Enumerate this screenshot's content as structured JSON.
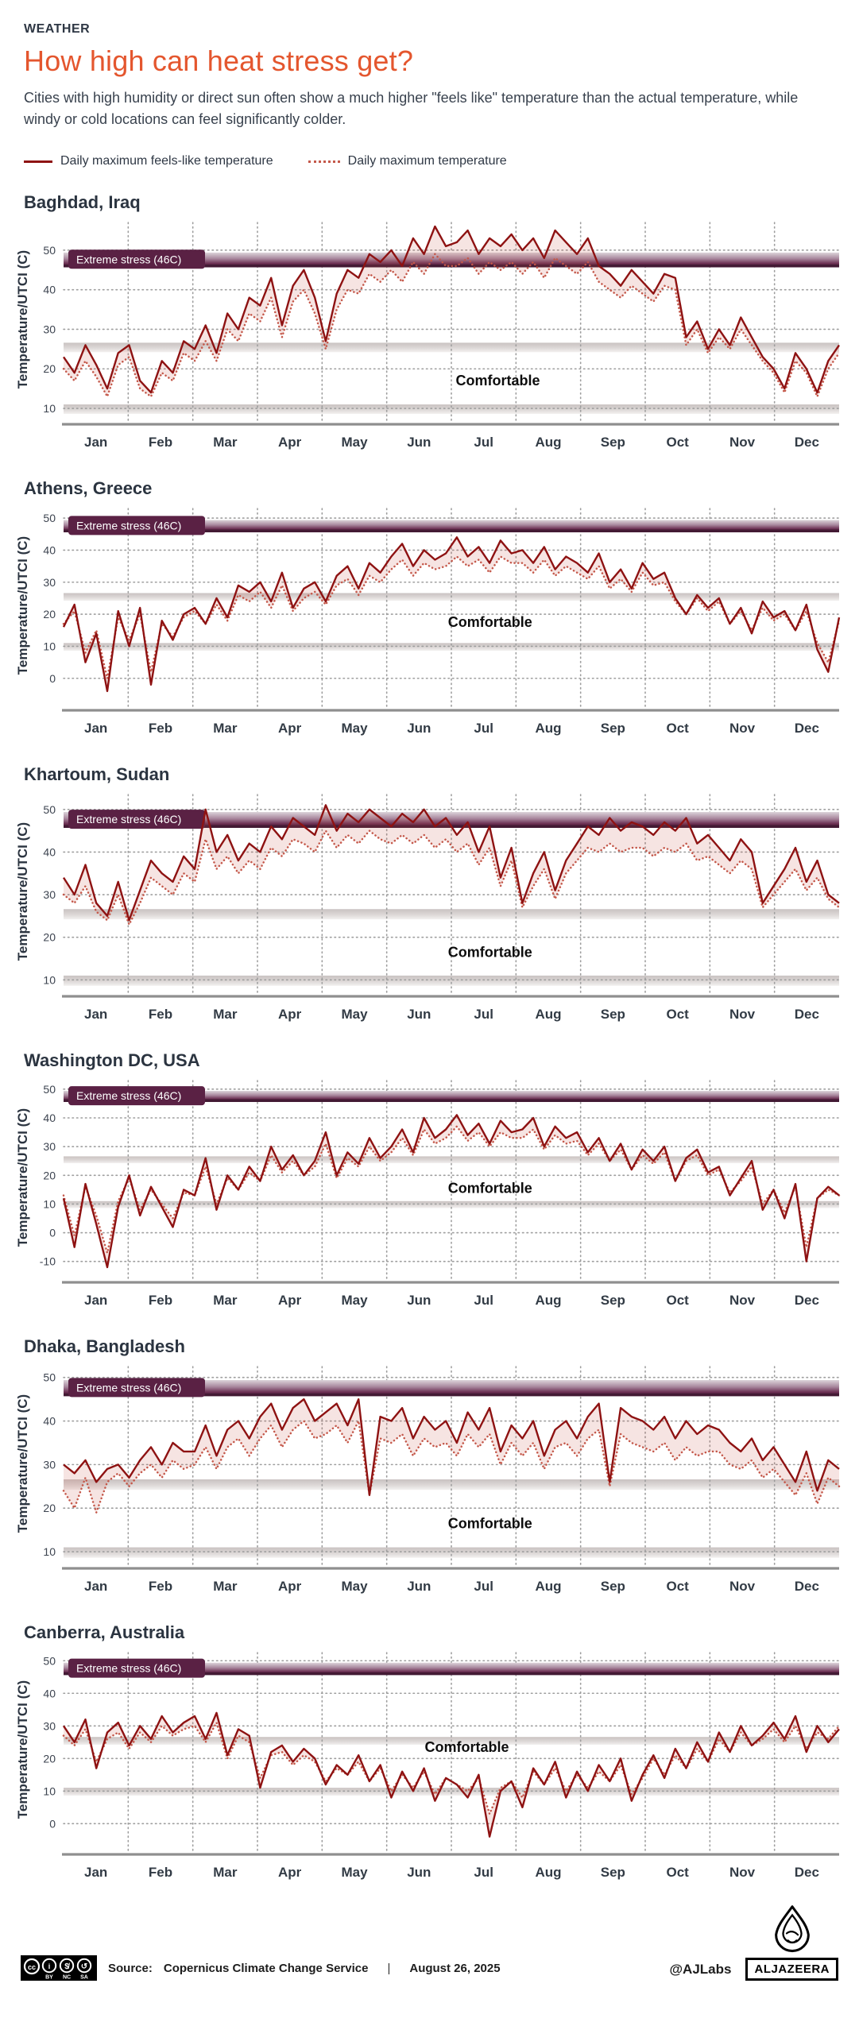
{
  "header": {
    "kicker": "WEATHER",
    "title": "How high can heat stress get?",
    "description": "Cities with high humidity or direct sun often show a much higher \"feels like\" temperature than the actual temperature, while windy or cold locations can feel significantly colder.",
    "legend": [
      {
        "label": "Daily maximum feels-like temperature",
        "style": "solid"
      },
      {
        "label": "Daily maximum temperature",
        "style": "dotted"
      }
    ]
  },
  "colors": {
    "accent": "#e4562e",
    "feels_like_line": "#8e1212",
    "actual_line": "#c4584a",
    "between_fill": "rgba(196,88,74,0.16)",
    "gridline": "#9e9e9e",
    "axis_line": "#8f8f8f",
    "extreme_badge": "#5a2144",
    "extreme_dark_edge": "#431a34",
    "text_dark": "#2b3440"
  },
  "axis": {
    "y_label": "Temperature/UTCI (C)",
    "months": [
      "Jan",
      "Feb",
      "Mar",
      "Apr",
      "May",
      "Jun",
      "Jul",
      "Aug",
      "Sep",
      "Oct",
      "Nov",
      "Dec"
    ]
  },
  "bands": {
    "extreme_label": "Extreme stress (46C)",
    "extreme_range": [
      46,
      49.4
    ],
    "comfortable_label": "Comfortable",
    "comfort_bands": [
      [
        24.2,
        26.6
      ],
      [
        8.6,
        11
      ]
    ]
  },
  "chart_data": [
    {
      "type": "line",
      "title": "Baghdad, Iraq",
      "ylim": [
        8,
        57
      ],
      "yticks": [
        10,
        20,
        30,
        40,
        50
      ],
      "comfort_label_x": 0.56,
      "comfort_label_v": 17,
      "series": [
        {
          "name": "Daily maximum feels-like temperature",
          "values": [
            23,
            19,
            26,
            21,
            15,
            24,
            26,
            17,
            14,
            22,
            19,
            27,
            25,
            31,
            24,
            34,
            30,
            38,
            36,
            43,
            31,
            41,
            45,
            38,
            27,
            39,
            45,
            43,
            49,
            47,
            50,
            46,
            53,
            49,
            56,
            51,
            52,
            55,
            49,
            53,
            51,
            54,
            50,
            53,
            48,
            55,
            52,
            49,
            53,
            46,
            44,
            41,
            45,
            42,
            39,
            44,
            43,
            28,
            32,
            25,
            30,
            26,
            33,
            28,
            23,
            20,
            15,
            24,
            20,
            14,
            22,
            26
          ]
        },
        {
          "name": "Daily maximum temperature",
          "values": [
            20,
            17,
            22,
            18,
            13,
            21,
            23,
            15,
            13,
            19,
            17,
            24,
            22,
            27,
            22,
            30,
            27,
            34,
            32,
            38,
            28,
            37,
            40,
            34,
            25,
            35,
            40,
            39,
            44,
            42,
            45,
            42,
            47,
            44,
            49,
            46,
            46,
            48,
            44,
            47,
            45,
            47,
            44,
            47,
            43,
            48,
            46,
            44,
            47,
            42,
            40,
            38,
            41,
            39,
            37,
            41,
            40,
            26,
            30,
            24,
            28,
            25,
            30,
            26,
            22,
            19,
            14,
            22,
            19,
            13,
            20,
            24
          ]
        }
      ]
    },
    {
      "type": "line",
      "title": "Athens, Greece",
      "ylim": [
        -7.5,
        53
      ],
      "yticks": [
        0,
        10,
        20,
        30,
        40,
        50
      ],
      "comfort_label_x": 0.55,
      "comfort_label_v": 17.5,
      "series": [
        {
          "name": "Daily maximum feels-like temperature",
          "values": [
            16,
            23,
            5,
            14,
            -4,
            21,
            10,
            22,
            -2,
            18,
            12,
            20,
            22,
            17,
            25,
            19,
            29,
            27,
            30,
            24,
            33,
            22,
            28,
            30,
            24,
            32,
            35,
            28,
            36,
            33,
            38,
            42,
            35,
            40,
            37,
            39,
            44,
            38,
            41,
            36,
            43,
            39,
            40,
            36,
            41,
            34,
            38,
            36,
            33,
            39,
            30,
            34,
            28,
            36,
            31,
            33,
            25,
            20,
            26,
            22,
            25,
            17,
            22,
            14,
            24,
            19,
            21,
            15,
            23,
            9,
            2,
            19
          ]
        },
        {
          "name": "Daily maximum temperature",
          "values": [
            17,
            21,
            8,
            15,
            0,
            19,
            12,
            20,
            2,
            17,
            13,
            19,
            21,
            17,
            23,
            18,
            26,
            24,
            27,
            22,
            29,
            21,
            25,
            27,
            23,
            29,
            31,
            26,
            32,
            30,
            34,
            37,
            32,
            36,
            34,
            35,
            38,
            35,
            37,
            33,
            38,
            36,
            36,
            33,
            37,
            32,
            35,
            33,
            31,
            35,
            28,
            31,
            27,
            33,
            29,
            30,
            24,
            20,
            25,
            21,
            24,
            17,
            21,
            15,
            22,
            18,
            20,
            15,
            21,
            11,
            5,
            18
          ]
        }
      ]
    },
    {
      "type": "line",
      "title": "Khartoum, Sudan",
      "ylim": [
        8,
        53.5
      ],
      "yticks": [
        10,
        20,
        30,
        40,
        50
      ],
      "comfort_label_x": 0.55,
      "comfort_label_v": 16.5,
      "series": [
        {
          "name": "Daily maximum feels-like temperature",
          "values": [
            34,
            30,
            37,
            28,
            25,
            33,
            24,
            31,
            38,
            35,
            33,
            39,
            36,
            50,
            40,
            44,
            38,
            42,
            40,
            46,
            43,
            48,
            46,
            44,
            51,
            45,
            49,
            47,
            50,
            48,
            46,
            49,
            47,
            50,
            46,
            48,
            44,
            47,
            40,
            46,
            34,
            41,
            28,
            35,
            40,
            31,
            38,
            42,
            46,
            44,
            48,
            45,
            47,
            46,
            44,
            47,
            45,
            48,
            42,
            44,
            41,
            38,
            43,
            40,
            28,
            32,
            36,
            41,
            33,
            38,
            30,
            28
          ]
        },
        {
          "name": "Daily maximum temperature",
          "values": [
            30,
            28,
            32,
            26,
            24,
            30,
            23,
            28,
            34,
            32,
            30,
            35,
            33,
            43,
            36,
            39,
            35,
            38,
            36,
            41,
            39,
            43,
            42,
            40,
            45,
            41,
            44,
            42,
            45,
            43,
            42,
            44,
            42,
            44,
            41,
            43,
            40,
            42,
            37,
            41,
            32,
            38,
            27,
            32,
            36,
            29,
            35,
            38,
            41,
            40,
            42,
            40,
            41,
            41,
            39,
            41,
            40,
            42,
            38,
            39,
            37,
            35,
            38,
            36,
            27,
            30,
            33,
            36,
            31,
            34,
            29,
            27
          ]
        }
      ]
    },
    {
      "type": "line",
      "title": "Washington DC,  USA",
      "ylim": [
        -14.5,
        53
      ],
      "yticks": [
        -10,
        0,
        10,
        20,
        30,
        40,
        50
      ],
      "comfort_label_x": 0.55,
      "comfort_label_v": 15.5,
      "series": [
        {
          "name": "Daily maximum feels-like temperature",
          "values": [
            12,
            -5,
            17,
            3,
            -12,
            9,
            20,
            6,
            16,
            9,
            2,
            15,
            13,
            26,
            8,
            20,
            15,
            23,
            18,
            30,
            22,
            27,
            20,
            25,
            35,
            20,
            28,
            24,
            33,
            26,
            30,
            36,
            28,
            40,
            33,
            36,
            41,
            34,
            38,
            31,
            39,
            35,
            36,
            40,
            30,
            37,
            33,
            35,
            28,
            33,
            25,
            31,
            22,
            29,
            25,
            30,
            18,
            26,
            29,
            21,
            23,
            13,
            19,
            25,
            8,
            15,
            5,
            17,
            -10,
            12,
            16,
            13
          ]
        },
        {
          "name": "Daily maximum temperature",
          "values": [
            13,
            -1,
            16,
            6,
            -7,
            11,
            19,
            8,
            15,
            10,
            5,
            14,
            13,
            23,
            10,
            19,
            15,
            21,
            18,
            27,
            21,
            25,
            20,
            23,
            31,
            19,
            26,
            23,
            30,
            25,
            28,
            33,
            27,
            36,
            31,
            33,
            37,
            32,
            35,
            30,
            35,
            33,
            33,
            36,
            29,
            34,
            31,
            32,
            27,
            31,
            25,
            29,
            22,
            27,
            24,
            28,
            18,
            25,
            27,
            20,
            22,
            14,
            18,
            23,
            10,
            15,
            7,
            16,
            -5,
            12,
            15,
            13
          ]
        }
      ]
    },
    {
      "type": "line",
      "title": "Dhaka, Bangladesh",
      "ylim": [
        8,
        52.5
      ],
      "yticks": [
        10,
        20,
        30,
        40,
        50
      ],
      "comfort_label_x": 0.55,
      "comfort_label_v": 16.5,
      "series": [
        {
          "name": "Daily maximum feels-like temperature",
          "values": [
            30,
            28,
            31,
            26,
            29,
            30,
            27,
            31,
            34,
            30,
            35,
            33,
            33,
            39,
            32,
            38,
            40,
            36,
            41,
            44,
            38,
            43,
            45,
            40,
            42,
            44,
            39,
            45,
            23,
            41,
            40,
            43,
            36,
            41,
            38,
            40,
            35,
            42,
            38,
            43,
            33,
            39,
            36,
            40,
            32,
            38,
            40,
            36,
            41,
            44,
            26,
            43,
            41,
            40,
            38,
            41,
            36,
            40,
            37,
            39,
            38,
            35,
            33,
            36,
            31,
            34,
            30,
            26,
            33,
            24,
            31,
            29
          ]
        },
        {
          "name": "Daily maximum temperature",
          "values": [
            24,
            20,
            27,
            19,
            26,
            28,
            25,
            28,
            30,
            27,
            31,
            29,
            30,
            34,
            29,
            34,
            36,
            32,
            36,
            39,
            34,
            38,
            40,
            36,
            37,
            39,
            35,
            40,
            23,
            36,
            35,
            37,
            32,
            36,
            34,
            35,
            32,
            37,
            34,
            37,
            30,
            35,
            32,
            35,
            29,
            34,
            35,
            32,
            36,
            38,
            25,
            37,
            35,
            34,
            33,
            35,
            31,
            34,
            32,
            33,
            33,
            30,
            29,
            31,
            27,
            29,
            26,
            23,
            28,
            21,
            27,
            25
          ]
        }
      ]
    },
    {
      "type": "line",
      "title": "Canberra, Australia",
      "ylim": [
        -7,
        52.5
      ],
      "yticks": [
        0,
        10,
        20,
        30,
        40,
        50
      ],
      "comfort_label_x": 0.52,
      "comfort_label_v": 23.5,
      "series": [
        {
          "name": "Daily maximum feels-like temperature",
          "values": [
            30,
            25,
            32,
            17,
            28,
            31,
            24,
            30,
            26,
            33,
            28,
            31,
            33,
            26,
            34,
            21,
            29,
            27,
            11,
            22,
            24,
            19,
            23,
            20,
            12,
            18,
            15,
            21,
            13,
            18,
            8,
            16,
            10,
            17,
            7,
            14,
            12,
            8,
            15,
            -4,
            10,
            13,
            5,
            17,
            12,
            19,
            8,
            16,
            10,
            18,
            13,
            20,
            7,
            15,
            21,
            14,
            23,
            17,
            25,
            19,
            28,
            22,
            30,
            24,
            27,
            31,
            26,
            33,
            22,
            30,
            25,
            29
          ]
        },
        {
          "name": "Daily maximum temperature",
          "values": [
            27,
            24,
            29,
            19,
            26,
            28,
            23,
            28,
            25,
            30,
            27,
            29,
            30,
            25,
            31,
            20,
            27,
            25,
            14,
            21,
            22,
            18,
            21,
            19,
            13,
            17,
            15,
            19,
            13,
            17,
            10,
            15,
            11,
            16,
            9,
            14,
            12,
            10,
            14,
            3,
            11,
            13,
            8,
            16,
            12,
            17,
            10,
            15,
            11,
            16,
            13,
            18,
            9,
            14,
            20,
            15,
            21,
            17,
            23,
            19,
            26,
            22,
            28,
            24,
            26,
            29,
            25,
            30,
            23,
            28,
            26,
            30
          ]
        }
      ]
    }
  ],
  "footer": {
    "license": "CC BY-NC-SA",
    "license_parts": [
      "cc",
      "by",
      "nc",
      "sa"
    ],
    "source_label": "Source:",
    "source": "Copernicus Climate Change Service",
    "separator": "|",
    "date": "August 26, 2025",
    "credit": "@AJLabs",
    "brand": "ALJAZEERA"
  }
}
